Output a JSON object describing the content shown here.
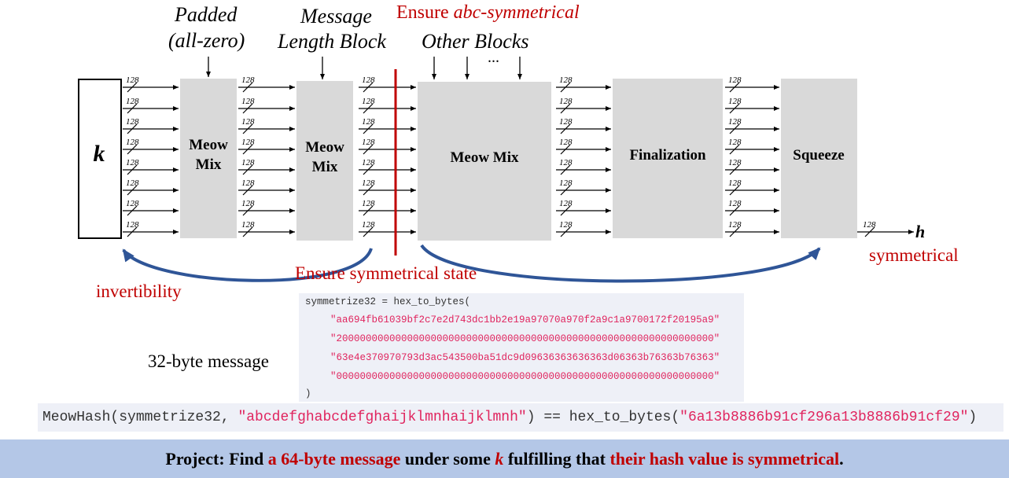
{
  "top_labels": {
    "padded_line1": "Padded",
    "padded_line2": "(all-zero)",
    "message_line1": "Message",
    "message_line2": "Length Block",
    "other_blocks": "Other Blocks",
    "dots": "...",
    "ensure_prefix": "Ensure ",
    "ensure_italic": "abc-symmetrical"
  },
  "state": {
    "input_label": "k",
    "output_label": "h",
    "lane_width": "128"
  },
  "blocks": {
    "meow_mix_1": [
      "Meow",
      "Mix"
    ],
    "meow_mix_2": [
      "Meow",
      "Mix"
    ],
    "meow_mix_3": "Meow Mix",
    "finalization": "Finalization",
    "squeeze": "Squeeze"
  },
  "annotations": {
    "invertibility": "invertibility",
    "ensure_symmetrical_state": "Ensure symmetrical state",
    "symmetrical": "symmetrical",
    "message_size": "32-byte message"
  },
  "code": {
    "assign": "symmetrize32 = hex_to_bytes(",
    "hex_lines": [
      "\"aa694fb61039bf2c7e2d743dc1bb2e19a97070a970f2a9c1a9700172f20195a9\"",
      "\"2000000000000000000000000000000000000000000000000000000000000000\"",
      "\"63e4e370970793d3ac543500ba51dc9d09636363636363d06363b76363b76363\"",
      "\"0000000000000000000000000000000000000000000000000000000000000000\""
    ],
    "close": ")"
  },
  "call": {
    "prefix": "MeowHash(symmetrize32, ",
    "arg": "\"abcdefghabcdefghaijklmnhaijklmnh\"",
    "middle": ") == hex_to_bytes(",
    "result": "\"6a13b8886b91cf296a13b8886b91cf29\"",
    "suffix": ")"
  },
  "project": {
    "p1": "Project: Find ",
    "p2": "a 64-byte message",
    "p3": " under some ",
    "p4": "k",
    "p5": " fulfilling that ",
    "p6": "their hash value is symmetrical",
    "p7": "."
  },
  "colors": {
    "accent_red": "#c00000",
    "box_gray": "#d9d9d9",
    "arc_blue": "#2f5597",
    "code_bg": "#eef0f7",
    "string_pink": "#e0245e",
    "banner_bg": "#b4c7e7"
  }
}
